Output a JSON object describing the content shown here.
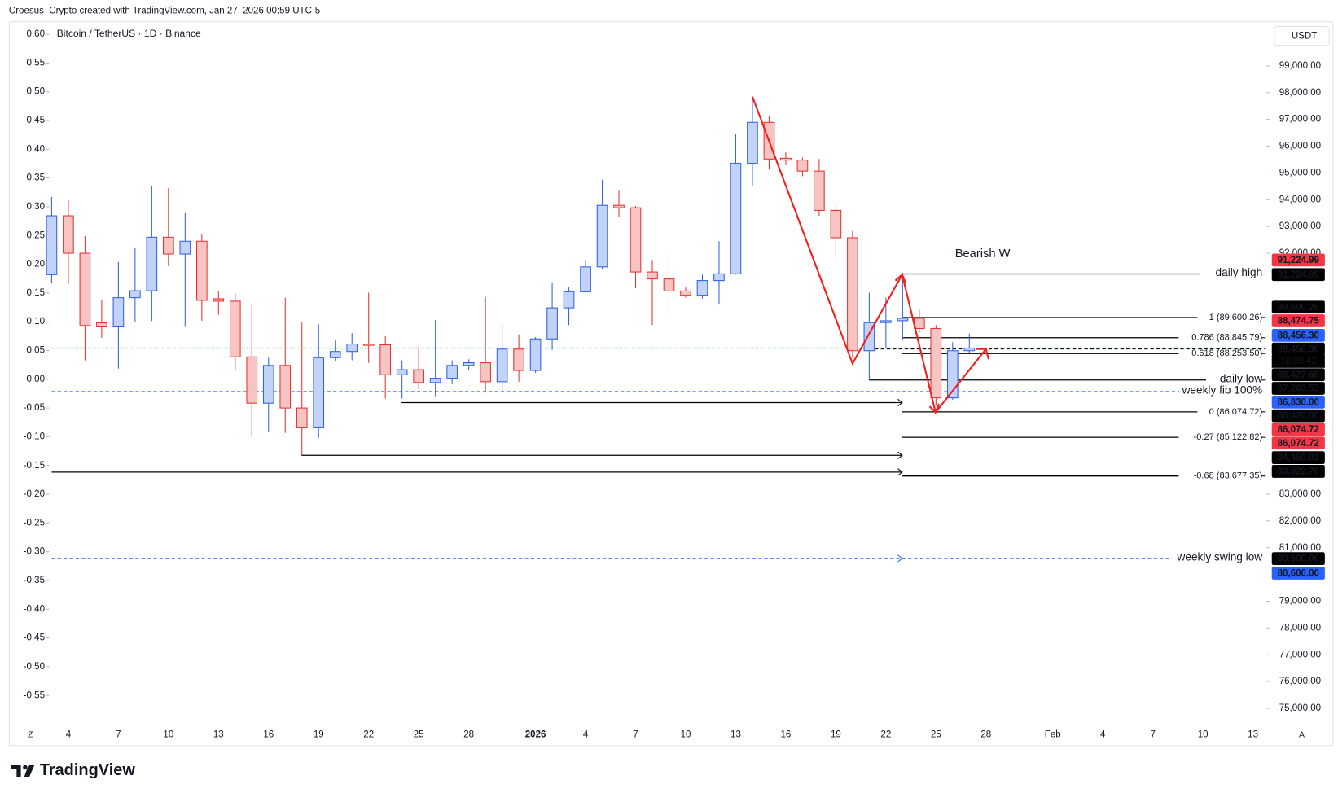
{
  "chart_data": {
    "type": "candlestick",
    "header": "Croesus_Crypto created with TradingView.com, Jan 27, 2026 00:59 UTC-5",
    "title": "Bitcoin / TetherUS · 1D · Binance",
    "currency": "USDT",
    "annotation": "Bearish W",
    "brand": "TradingView",
    "left_button": "Z",
    "right_button": "A",
    "countdown": "18:00:42",
    "up_color": "#2e62e6",
    "up_fill": "#c3d2f7",
    "down_color": "#e8322f",
    "down_fill": "#f7c4c4",
    "categories": [
      null,
      "4",
      null,
      null,
      "7",
      null,
      null,
      "10",
      null,
      null,
      "13",
      null,
      null,
      "16",
      null,
      null,
      "19",
      null,
      null,
      "22",
      null,
      null,
      "25",
      null,
      null,
      "28",
      null,
      null,
      null,
      "2026",
      null,
      null,
      "4",
      null,
      null,
      "7",
      null,
      null,
      "10",
      null,
      null,
      "13",
      null,
      null,
      "16",
      null,
      null,
      "19",
      null,
      null,
      "22",
      null,
      null,
      "25",
      null,
      null,
      "28",
      null,
      null,
      null,
      "Feb",
      null,
      null,
      "4",
      null,
      null,
      "7",
      null,
      null,
      "10",
      null,
      null,
      "13"
    ],
    "open": [
      91200,
      93400,
      92000,
      89400,
      89250,
      90340,
      90600,
      92600,
      91970,
      92450,
      90300,
      90210,
      88130,
      86400,
      87810,
      86220,
      85480,
      88100,
      88330,
      88610,
      88580,
      87460,
      87650,
      87170,
      87330,
      87810,
      87910,
      87200,
      88420,
      87620,
      88800,
      89960,
      90560,
      91490,
      93790,
      93700,
      91300,
      91040,
      90590,
      90430,
      90980,
      91230,
      95360,
      96890,
      95550,
      95480,
      95070,
      93600,
      92580,
      88360,
      89410,
      89480,
      89570,
      89190,
      86600,
      88360,
      null,
      null,
      null,
      null,
      null,
      null,
      null,
      null,
      null,
      null,
      null,
      null,
      null,
      null,
      null,
      null,
      null
    ],
    "high": [
      94100,
      93980,
      92640,
      90270,
      91680,
      92220,
      94520,
      94430,
      93500,
      92700,
      90600,
      90500,
      90050,
      88100,
      90340,
      89440,
      89350,
      88740,
      89020,
      90530,
      88900,
      88000,
      88510,
      89510,
      88000,
      88040,
      90370,
      89320,
      88970,
      88870,
      90880,
      90720,
      91750,
      94750,
      94370,
      93760,
      91750,
      92000,
      90720,
      91200,
      92450,
      96440,
      97850,
      97110,
      95770,
      95580,
      95520,
      93790,
      92830,
      90530,
      90340,
      91170,
      89890,
      89320,
      88680,
      89000,
      null,
      null,
      null,
      null,
      null,
      null,
      null,
      null,
      null,
      null,
      null,
      null,
      null,
      null,
      null,
      null,
      null
    ],
    "low": [
      90900,
      90850,
      88000,
      88840,
      87690,
      89440,
      89470,
      91520,
      89250,
      89480,
      89700,
      87650,
      85130,
      85320,
      85290,
      84450,
      85100,
      87970,
      88000,
      87900,
      86570,
      86570,
      86920,
      86660,
      87110,
      87620,
      86790,
      86790,
      87200,
      87530,
      88390,
      89320,
      90530,
      91390,
      93350,
      90690,
      89320,
      89660,
      90340,
      90310,
      90080,
      91200,
      94530,
      95130,
      95290,
      94880,
      93400,
      91840,
      88100,
      87240,
      88450,
      88740,
      89030,
      86310,
      86530,
      88290,
      null,
      null,
      null,
      null,
      null,
      null,
      null,
      null,
      null,
      null,
      null,
      null,
      null,
      null,
      null,
      null,
      null
    ],
    "close": [
      93400,
      92000,
      89300,
      89250,
      90340,
      90600,
      92600,
      91970,
      92450,
      90240,
      90210,
      88130,
      86400,
      87810,
      86220,
      85480,
      88100,
      88330,
      88610,
      88580,
      87460,
      87650,
      87170,
      87330,
      87810,
      87910,
      87200,
      88420,
      87620,
      88800,
      89960,
      90560,
      91490,
      93790,
      93700,
      91300,
      91040,
      90590,
      90430,
      90980,
      91230,
      95360,
      96890,
      95520,
      95480,
      95070,
      93600,
      92580,
      88360,
      89410,
      89480,
      89570,
      89190,
      86600,
      88360,
      88456.3,
      null,
      null,
      null,
      null,
      null,
      null,
      null,
      null,
      null,
      null,
      null,
      null,
      null,
      null,
      null,
      null,
      null
    ],
    "ylim": [
      74457,
      100566
    ],
    "yticks": [
      {
        "value": 99000,
        "label": "99,000.00"
      },
      {
        "value": 98000,
        "label": "98,000.00"
      },
      {
        "value": 97000,
        "label": "97,000.00"
      },
      {
        "value": 96000,
        "label": "96,000.00"
      },
      {
        "value": 95000,
        "label": "95,000.00"
      },
      {
        "value": 94000,
        "label": "94,000.00"
      },
      {
        "value": 93000,
        "label": "93,000.00"
      },
      {
        "value": 92000,
        "label": "92,000.00"
      },
      {
        "value": 83000,
        "label": "83,000.00"
      },
      {
        "value": 82000,
        "label": "82,000.00"
      },
      {
        "value": 81000,
        "label": "81,000.00"
      },
      {
        "value": 79000,
        "label": "79,000.00"
      },
      {
        "value": 78000,
        "label": "78,000.00"
      },
      {
        "value": 77000,
        "label": "77,000.00"
      },
      {
        "value": 76000,
        "label": "76,000.00"
      },
      {
        "value": 75000,
        "label": "75,000.00"
      }
    ],
    "y2lim": [
      -0.5976,
      0.6179
    ],
    "y2ticks": [
      {
        "value": 0.6,
        "label": "0.60"
      },
      {
        "value": 0.55,
        "label": "0.55"
      },
      {
        "value": 0.5,
        "label": "0.50"
      },
      {
        "value": 0.45,
        "label": "0.45"
      },
      {
        "value": 0.4,
        "label": "0.40"
      },
      {
        "value": 0.35,
        "label": "0.35"
      },
      {
        "value": 0.3,
        "label": "0.30"
      },
      {
        "value": 0.25,
        "label": "0.25"
      },
      {
        "value": 0.2,
        "label": "0.20"
      },
      {
        "value": 0.15,
        "label": "0.15"
      },
      {
        "value": 0.1,
        "label": "0.10"
      },
      {
        "value": 0.05,
        "label": "0.05"
      },
      {
        "value": 0,
        "label": "0.00"
      },
      {
        "value": -0.05,
        "label": "-0.05"
      },
      {
        "value": -0.1,
        "label": "-0.10"
      },
      {
        "value": -0.15,
        "label": "-0.15"
      },
      {
        "value": -0.2,
        "label": "-0.20"
      },
      {
        "value": -0.25,
        "label": "-0.25"
      },
      {
        "value": -0.3,
        "label": "-0.30"
      },
      {
        "value": -0.35,
        "label": "-0.35"
      },
      {
        "value": -0.4,
        "label": "-0.40"
      },
      {
        "value": -0.45,
        "label": "-0.45"
      },
      {
        "value": -0.5,
        "label": "-0.50"
      },
      {
        "value": -0.55,
        "label": "-0.55"
      }
    ],
    "levels": [
      {
        "value": 91224.99,
        "label": "daily high",
        "color": "#000000"
      },
      {
        "value": 87263.53,
        "label": "daily low",
        "color": "#000000"
      },
      {
        "value": 86830,
        "label": "weekly fib 100%",
        "color": "#2962ff"
      },
      {
        "value": 80600,
        "label": "weekly swing low",
        "color": "#2962ff"
      },
      {
        "value": 89600.26,
        "label": "1 (89,600.26)",
        "color": "#000000"
      },
      {
        "value": 88845.79,
        "label": "0.786 (88,845.79)",
        "color": "#000000"
      },
      {
        "value": 88253.5,
        "label": "0.618 (88,253.50)",
        "color": "#000000"
      },
      {
        "value": 86074.72,
        "label": "0 (86,074.72)",
        "color": "#000000"
      },
      {
        "value": 85122.82,
        "label": "-0.27 (85,122.82)",
        "color": "#000000"
      },
      {
        "value": 83677.35,
        "label": "-0.68 (83,677.35)",
        "color": "#000000"
      },
      {
        "value": 86420,
        "color": "#000000"
      },
      {
        "value": 84450.01,
        "color": "#000000"
      },
      {
        "value": 83822.76,
        "color": "#000000"
      },
      {
        "value": 88427.66,
        "color": "#000000"
      },
      {
        "value": 88456.3,
        "color": "#089981"
      }
    ],
    "price_labels": [
      {
        "value": 91224.99,
        "label": "91,224.99",
        "color": "#f23645"
      },
      {
        "value": 91224.99,
        "label": "91,224.99",
        "color": "#000000"
      },
      {
        "value": 89600.26,
        "label": "89,600.26",
        "color": "#000000"
      },
      {
        "value": 88474.75,
        "label": "88,474.75",
        "color": "#f23645"
      },
      {
        "value": 88456.3,
        "label": "88,456.30",
        "color": "#2962ff"
      },
      {
        "value": 88456.3,
        "label": "88,456.30",
        "color": "#000000"
      },
      {
        "value": 88427.66,
        "label": "88,427.66",
        "color": "#000000"
      },
      {
        "value": 87263.53,
        "label": "87,263.53",
        "color": "#000000"
      },
      {
        "value": 86830,
        "label": "86,830.00",
        "color": "#2962ff"
      },
      {
        "value": 86420,
        "label": "86,420.00",
        "color": "#000000"
      },
      {
        "value": 86074.72,
        "label": "86,074.72",
        "color": "#f23645"
      },
      {
        "value": 86074.72,
        "label": "86,074.72",
        "color": "#f23645"
      },
      {
        "value": 84450.01,
        "label": "84,450.01",
        "color": "#000000"
      },
      {
        "value": 83822.76,
        "label": "83,822.76",
        "color": "#000000"
      },
      {
        "value": 80600,
        "label": "80,600.00",
        "color": "#000000"
      },
      {
        "value": 80600,
        "label": "80,600.00",
        "color": "#2962ff"
      }
    ]
  }
}
